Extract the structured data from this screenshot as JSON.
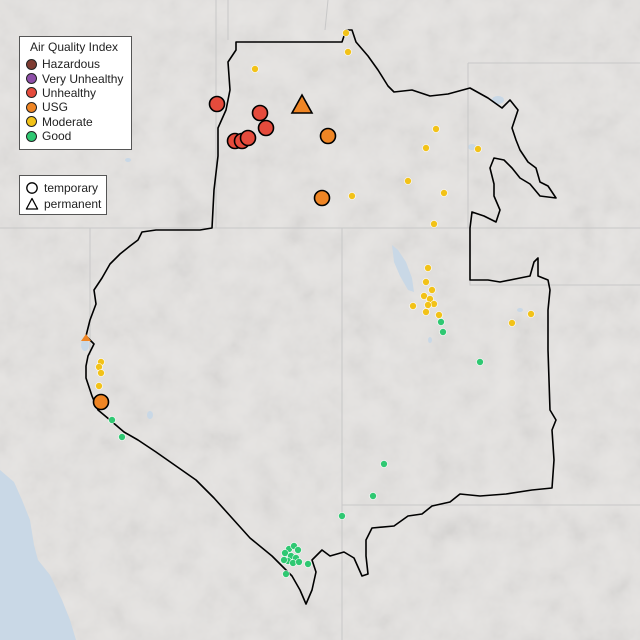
{
  "colors": {
    "water": "#c9d8e6",
    "state_line": "#c8c8c8",
    "outline": "#000000",
    "land": "#e6e4e2"
  },
  "legend": {
    "title": "Air Quality Index",
    "categories": [
      {
        "label": "Hazardous",
        "color": "#7e3b31"
      },
      {
        "label": "Very Unhealthy",
        "color": "#8e4fa8"
      },
      {
        "label": "Unhealthy",
        "color": "#e54b3c"
      },
      {
        "label": "USG",
        "color": "#ef8524"
      },
      {
        "label": "Moderate",
        "color": "#f2c218"
      },
      {
        "label": "Good",
        "color": "#2fc872"
      }
    ],
    "types": [
      {
        "label": "temporary",
        "shape": "circle-icon"
      },
      {
        "label": "permanent",
        "shape": "triangle-icon"
      }
    ]
  }
}
